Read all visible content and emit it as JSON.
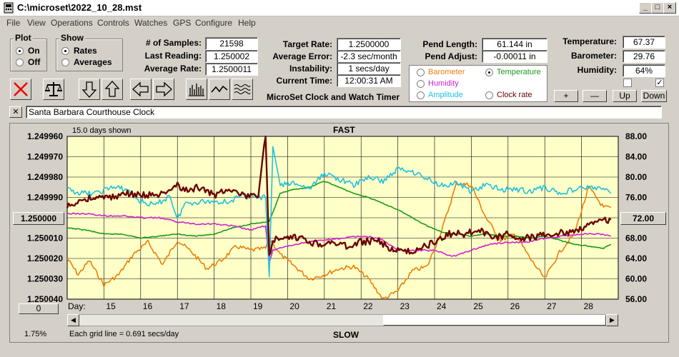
{
  "window": {
    "title": "C:\\microset\\2022_10_28.mst"
  },
  "menu": [
    "File",
    "View",
    "Operations",
    "Controls",
    "Watches",
    "GPS",
    "Configure",
    "Help"
  ],
  "plot_group": {
    "title": "Plot",
    "options": [
      "On",
      "Off"
    ],
    "selected": "On"
  },
  "show_group": {
    "title": "Show",
    "options": [
      "Rates",
      "Averages"
    ],
    "selected": "Rates"
  },
  "stats": {
    "samples_label": "# of Samples:",
    "samples": "21598",
    "last_label": "Last Reading:",
    "last": "1.250002",
    "avg_label": "Average Rate:",
    "avg": "1.2500011",
    "target_label": "Target Rate:",
    "target": "1.2500000",
    "err_label": "Average Error:",
    "err": "-2.3 sec/month",
    "inst_label": "Instability:",
    "inst": "1 secs/day",
    "time_label": "Current Time:",
    "time": "12:00:31 AM",
    "pend_len_label": "Pend Length:",
    "pend_len": "61.144 in",
    "pend_adj_label": "Pend Adjust:",
    "pend_adj": "-0.00011 in",
    "temp_label": "Temperature:",
    "temp": "67.37",
    "baro_label": "Barometer:",
    "baro": "29.76",
    "hum_label": "Humidity:",
    "hum": "64%"
  },
  "product_title": "MicroSet Clock and Watch Timer",
  "legend_options": [
    {
      "label": "Barometer",
      "color": "#e8800a",
      "selected": false
    },
    {
      "label": "Temperature",
      "color": "#1a9a1a",
      "selected": true
    },
    {
      "label": "Humidity",
      "color": "#d020d0",
      "selected": false
    },
    {
      "label": "Amplitude",
      "color": "#20c0e0",
      "selected": false
    },
    {
      "label": "Clock rate",
      "color": "#6b0000",
      "selected": false
    }
  ],
  "right_buttons": [
    "+",
    "—",
    "Up",
    "Down"
  ],
  "checkboxes": [
    false,
    true
  ],
  "note": {
    "close": "✕",
    "text": "Santa Barbara Courthouse Clock"
  },
  "chart_data": {
    "type": "line",
    "title_top": "FAST",
    "title_bottom": "SLOW",
    "days_shown": "15.0 days shown",
    "grid_note": "Each grid line = 0.691 secs/day",
    "left_ticks": [
      "1.249960",
      "1.249970",
      "1.249980",
      "1.249990",
      "1.250000",
      "1.250010",
      "1.250020",
      "1.250030",
      "1.250040"
    ],
    "right_ticks": [
      "88.00",
      "84.00",
      "80.00",
      "76.00",
      "72.00",
      "68.00",
      "64.00",
      "60.00",
      "56.00"
    ],
    "x_label": "Day:",
    "x_ticks": [
      "15",
      "16",
      "17",
      "18",
      "19",
      "20",
      "21",
      "22",
      "23",
      "24",
      "25",
      "26",
      "27",
      "28"
    ],
    "x_range": [
      14.0,
      29.0
    ],
    "left_range": [
      1.24996,
      1.25004
    ],
    "right_range": [
      56,
      88
    ],
    "left_box": "1.250000",
    "right_box": "72.00",
    "zero_btn": "0",
    "pct": "1.75%",
    "series": [
      {
        "name": "Clock rate",
        "color": "#6b0000",
        "axis": "left",
        "x": [
          14.0,
          14.4,
          14.8,
          15.2,
          15.6,
          16.0,
          16.4,
          16.8,
          17.0,
          17.2,
          17.6,
          18.0,
          18.4,
          18.8,
          19.2,
          19.4,
          19.5,
          19.6,
          19.8,
          20.0,
          20.4,
          20.8,
          21.2,
          21.6,
          22.0,
          22.4,
          22.8,
          23.0,
          23.2,
          23.6,
          24.0,
          24.4,
          24.8,
          25.2,
          25.6,
          26.0,
          26.4,
          26.8,
          27.2,
          27.6,
          28.0,
          28.4,
          28.8
        ],
        "y": [
          1.249995,
          1.249991,
          1.24999,
          1.24999,
          1.249988,
          1.249989,
          1.249989,
          1.249988,
          1.249983,
          1.249987,
          1.249985,
          1.249989,
          1.249985,
          1.249989,
          1.24999,
          1.249958,
          1.25002,
          1.25001,
          1.250012,
          1.25001,
          1.25001,
          1.250013,
          1.250012,
          1.250014,
          1.250012,
          1.250011,
          1.250015,
          1.250016,
          1.250017,
          1.250015,
          1.250012,
          1.250008,
          1.250008,
          1.250006,
          1.25001,
          1.250008,
          1.25001,
          1.250009,
          1.250008,
          1.250007,
          1.250005,
          1.250002,
          1.250001
        ]
      },
      {
        "name": "Amplitude",
        "color": "#20c0e0",
        "axis": "left",
        "x": [
          14.0,
          14.4,
          14.8,
          15.2,
          15.6,
          16.0,
          16.4,
          16.8,
          17.0,
          17.2,
          17.6,
          18.0,
          18.4,
          18.8,
          19.2,
          19.4,
          19.5,
          19.6,
          19.8,
          20.2,
          20.6,
          21.0,
          21.4,
          21.8,
          22.2,
          22.6,
          23.0,
          23.4,
          23.8,
          24.2,
          24.6,
          25.0,
          25.4,
          25.8,
          26.2,
          26.6,
          27.0,
          27.4,
          27.8,
          28.2,
          28.6,
          28.8
        ],
        "y": [
          1.249986,
          1.249988,
          1.249988,
          1.249985,
          1.249986,
          1.249992,
          1.249994,
          1.249989,
          1.250001,
          1.249993,
          1.249992,
          1.249992,
          1.249992,
          1.249989,
          1.24999,
          1.24999,
          1.250029,
          1.249965,
          1.249984,
          1.249983,
          1.249986,
          1.249978,
          1.249981,
          1.249984,
          1.24998,
          1.249982,
          1.249976,
          1.249977,
          1.249981,
          1.249984,
          1.249983,
          1.249987,
          1.249984,
          1.249986,
          1.249986,
          1.249987,
          1.249985,
          1.249988,
          1.249986,
          1.249985,
          1.249986,
          1.249988
        ]
      },
      {
        "name": "Humidity",
        "color": "#d020d0",
        "axis": "left",
        "x": [
          14.0,
          14.5,
          15.0,
          15.5,
          16.0,
          16.5,
          17.0,
          17.5,
          18.0,
          18.5,
          19.0,
          19.4,
          19.5,
          19.6,
          20.0,
          20.5,
          21.0,
          21.5,
          22.0,
          22.5,
          23.0,
          23.5,
          24.0,
          24.5,
          25.0,
          25.5,
          26.0,
          26.5,
          27.0,
          27.5,
          28.0,
          28.5,
          28.8
        ],
        "y": [
          1.249998,
          1.249998,
          1.249999,
          1.249999,
          1.25,
          1.25,
          1.250002,
          1.250003,
          1.250003,
          1.250004,
          1.250006,
          1.250004,
          1.250022,
          1.250016,
          1.250014,
          1.250012,
          1.250011,
          1.25001,
          1.250009,
          1.25001,
          1.250016,
          1.250016,
          1.250016,
          1.250019,
          1.250016,
          1.250013,
          1.250012,
          1.250012,
          1.25001,
          1.250009,
          1.250008,
          1.250008,
          1.250009
        ]
      },
      {
        "name": "Temperature",
        "color": "#1a9a1a",
        "axis": "left",
        "x": [
          14.0,
          14.5,
          15.0,
          15.5,
          16.0,
          16.5,
          17.0,
          17.5,
          18.0,
          18.5,
          19.0,
          19.5,
          19.8,
          20.2,
          20.6,
          21.0,
          21.4,
          21.8,
          22.2,
          22.6,
          23.0,
          23.4,
          23.8,
          24.2,
          24.6,
          25.0,
          25.4,
          25.8,
          26.2,
          26.6,
          27.0,
          27.4,
          27.8,
          28.2,
          28.6,
          28.8
        ],
        "y": [
          1.250005,
          1.250006,
          1.250008,
          1.250008,
          1.25001,
          1.250009,
          1.250008,
          1.250009,
          1.250008,
          1.250005,
          1.250003,
          1.250002,
          1.249988,
          1.249986,
          1.249985,
          1.249982,
          1.249985,
          1.249988,
          1.24999,
          1.249993,
          1.249996,
          1.25,
          1.250004,
          1.250007,
          1.250008,
          1.250009,
          1.250008,
          1.250009,
          1.250009,
          1.25001,
          1.250009,
          1.250011,
          1.250013,
          1.250014,
          1.250015,
          1.250013
        ]
      },
      {
        "name": "Barometer",
        "color": "#e8800a",
        "axis": "left",
        "x": [
          14.0,
          14.3,
          14.6,
          15.0,
          15.4,
          15.8,
          16.2,
          16.6,
          17.0,
          17.4,
          17.8,
          18.2,
          18.6,
          19.0,
          19.4,
          19.5,
          19.8,
          20.2,
          20.6,
          21.0,
          21.4,
          21.8,
          22.2,
          22.6,
          23.0,
          23.4,
          23.8,
          24.2,
          24.6,
          25.0,
          25.4,
          25.8,
          26.2,
          26.6,
          27.0,
          27.4,
          27.8,
          28.2,
          28.6,
          28.8
        ],
        "y": [
          1.25002,
          1.250028,
          1.250021,
          1.250033,
          1.250028,
          1.250018,
          1.250012,
          1.250023,
          1.250011,
          1.250017,
          1.250025,
          1.250021,
          1.250014,
          1.250016,
          1.250015,
          1.25001,
          1.250018,
          1.250024,
          1.25003,
          1.250028,
          1.250025,
          1.250024,
          1.25003,
          1.25004,
          1.250036,
          1.250026,
          1.250024,
          1.250006,
          1.249983,
          1.249984,
          1.25,
          1.250011,
          1.250008,
          1.25002,
          1.25003,
          1.250017,
          1.250008,
          1.249985,
          1.249995,
          1.249995
        ]
      }
    ]
  }
}
